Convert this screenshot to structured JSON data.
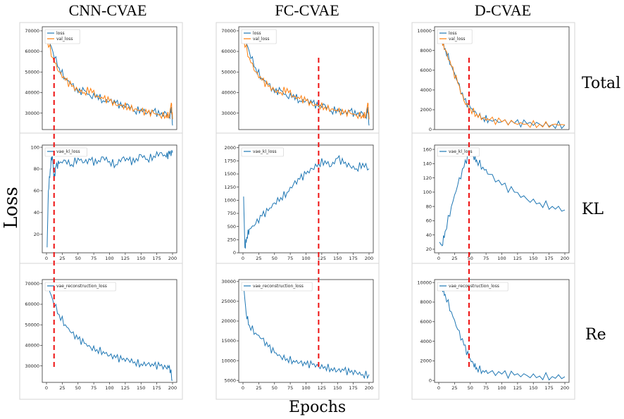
{
  "figure": {
    "column_titles": [
      "CNN-CVAE",
      "FC-CVAE",
      "D-CVAE"
    ],
    "row_labels": [
      "Total",
      "KL",
      "Re"
    ],
    "y_axis_label": "Loss",
    "x_axis_label": "Epochs"
  },
  "chart_data": [
    {
      "type": "line",
      "panel": "CNN-CVAE / Total",
      "x_range": [
        0,
        200
      ],
      "ylim": [
        22000,
        72000
      ],
      "yticks": [
        30000,
        40000,
        50000,
        60000,
        70000
      ],
      "xticks": [],
      "series": [
        {
          "name": "loss",
          "color": "#1f77b4",
          "x": [
            1,
            10,
            20,
            30,
            40,
            50,
            60,
            70,
            80,
            90,
            100,
            110,
            120,
            130,
            140,
            150,
            160,
            170,
            180,
            190,
            195,
            198,
            200
          ],
          "y": [
            68000,
            60000,
            52000,
            47000,
            44000,
            40000,
            41000,
            38000,
            39000,
            36000,
            36000,
            35000,
            33000,
            34000,
            31000,
            32000,
            30000,
            31000,
            29000,
            30000,
            28000,
            33000,
            24000
          ]
        },
        {
          "name": "val_loss",
          "color": "#ff7f0e",
          "x": [
            1,
            10,
            20,
            30,
            40,
            50,
            60,
            70,
            80,
            90,
            100,
            110,
            120,
            130,
            140,
            150,
            160,
            170,
            180,
            190,
            195,
            198,
            200
          ],
          "y": [
            66000,
            57000,
            50000,
            46000,
            43000,
            41000,
            40000,
            42000,
            38000,
            37000,
            36000,
            34000,
            34000,
            33000,
            32000,
            31000,
            30000,
            30000,
            29000,
            29000,
            29000,
            35000,
            27000
          ]
        }
      ],
      "legend_position": "top-left",
      "vline_x": 12
    },
    {
      "type": "line",
      "panel": "FC-CVAE / Total",
      "x_range": [
        0,
        200
      ],
      "ylim": [
        22000,
        72000
      ],
      "yticks": [
        30000,
        40000,
        50000,
        60000,
        70000
      ],
      "xticks": [],
      "series": [
        {
          "name": "loss",
          "color": "#1f77b4",
          "x": [
            1,
            10,
            20,
            30,
            40,
            50,
            60,
            70,
            80,
            90,
            100,
            110,
            120,
            130,
            140,
            150,
            160,
            170,
            180,
            190,
            195,
            198,
            200
          ],
          "y": [
            68000,
            60000,
            52000,
            47000,
            44000,
            40000,
            41000,
            38000,
            39000,
            36000,
            36000,
            35000,
            33000,
            34000,
            31000,
            32000,
            30000,
            31000,
            29000,
            30000,
            28000,
            33000,
            24000
          ]
        },
        {
          "name": "val_loss",
          "color": "#ff7f0e",
          "x": [
            1,
            10,
            20,
            30,
            40,
            50,
            60,
            70,
            80,
            90,
            100,
            110,
            120,
            130,
            140,
            150,
            160,
            170,
            180,
            190,
            195,
            198,
            200
          ],
          "y": [
            66000,
            57000,
            50000,
            46000,
            43000,
            41000,
            40000,
            42000,
            38000,
            37000,
            36000,
            34000,
            34000,
            33000,
            32000,
            31000,
            30000,
            30000,
            29000,
            29000,
            29000,
            35000,
            27000
          ]
        }
      ],
      "legend_position": "top-left",
      "vline_x": 120
    },
    {
      "type": "line",
      "panel": "D-CVAE / Total",
      "x_range": [
        0,
        200
      ],
      "ylim": [
        0,
        10400
      ],
      "yticks": [
        0,
        2000,
        4000,
        6000,
        8000,
        10000
      ],
      "xticks": [],
      "series": [
        {
          "name": "loss",
          "color": "#1f77b4",
          "x": [
            1,
            5,
            10,
            20,
            30,
            40,
            50,
            60,
            70,
            80,
            100,
            120,
            140,
            160,
            180,
            200
          ],
          "y": [
            9800,
            9000,
            8200,
            6500,
            4800,
            3000,
            2200,
            1600,
            1200,
            1000,
            800,
            650,
            600,
            550,
            500,
            480
          ]
        },
        {
          "name": "val_loss",
          "color": "#ff7f0e",
          "x": [
            1,
            5,
            10,
            20,
            30,
            40,
            50,
            60,
            70,
            80,
            100,
            120,
            140,
            160,
            180,
            200
          ],
          "y": [
            9600,
            8900,
            8100,
            6400,
            4700,
            2900,
            2100,
            1550,
            1150,
            950,
            780,
            640,
            580,
            540,
            500,
            470
          ]
        }
      ],
      "legend_position": "top-left",
      "vline_x": 48
    },
    {
      "type": "line",
      "panel": "CNN-CVAE / KL",
      "x_range": [
        0,
        200
      ],
      "ylim": [
        3,
        102
      ],
      "yticks": [
        20,
        40,
        60,
        80,
        100
      ],
      "xticks": [
        0,
        25,
        50,
        75,
        100,
        125,
        150,
        175,
        200
      ],
      "series": [
        {
          "name": "vae_kl_loss",
          "color": "#1f77b4",
          "x": [
            1,
            3,
            6,
            9,
            12,
            15,
            20,
            30,
            40,
            50,
            60,
            70,
            80,
            90,
            100,
            110,
            120,
            130,
            140,
            150,
            160,
            170,
            180,
            190,
            195,
            200
          ],
          "y": [
            8,
            60,
            80,
            95,
            70,
            82,
            85,
            88,
            84,
            90,
            86,
            88,
            85,
            91,
            87,
            84,
            90,
            88,
            86,
            93,
            89,
            92,
            95,
            91,
            94,
            95
          ]
        }
      ],
      "legend_position": "top-left",
      "vline_x": 12
    },
    {
      "type": "line",
      "panel": "FC-CVAE / KL",
      "x_range": [
        0,
        200
      ],
      "ylim": [
        0,
        2050
      ],
      "yticks": [
        0,
        250,
        500,
        750,
        1000,
        1250,
        1500,
        1750,
        2000
      ],
      "xticks": [
        0,
        25,
        50,
        75,
        100,
        125,
        150,
        175,
        200
      ],
      "series": [
        {
          "name": "vae_kl_loss",
          "color": "#1f77b4",
          "x": [
            1,
            3,
            6,
            10,
            20,
            30,
            40,
            50,
            60,
            70,
            80,
            90,
            100,
            110,
            120,
            130,
            140,
            150,
            160,
            170,
            180,
            190,
            200
          ],
          "y": [
            1070,
            100,
            300,
            450,
            550,
            700,
            800,
            950,
            1050,
            1150,
            1300,
            1400,
            1500,
            1600,
            1700,
            1750,
            1650,
            1800,
            1700,
            1650,
            1600,
            1700,
            1600
          ]
        }
      ],
      "legend_position": "top-left",
      "vline_x": 120
    },
    {
      "type": "line",
      "panel": "D-CVAE / KL",
      "x_range": [
        0,
        200
      ],
      "ylim": [
        15,
        166
      ],
      "yticks": [
        20,
        40,
        60,
        80,
        100,
        120,
        140,
        160
      ],
      "xticks": [
        0,
        25,
        50,
        75,
        100,
        125,
        150,
        175,
        200
      ],
      "series": [
        {
          "name": "vae_kl_loss",
          "color": "#1f77b4",
          "x": [
            1,
            5,
            10,
            20,
            30,
            40,
            48,
            55,
            60,
            70,
            80,
            100,
            120,
            140,
            160,
            180,
            200
          ],
          "y": [
            30,
            25,
            45,
            80,
            110,
            135,
            155,
            150,
            145,
            135,
            125,
            110,
            100,
            90,
            85,
            80,
            75
          ]
        }
      ],
      "legend_position": "top-left",
      "vline_x": 48
    },
    {
      "type": "line",
      "panel": "CNN-CVAE / Re",
      "x_range": [
        0,
        200
      ],
      "ylim": [
        22000,
        72000
      ],
      "yticks": [
        30000,
        40000,
        50000,
        60000,
        70000
      ],
      "xticks": [
        0,
        25,
        50,
        75,
        100,
        125,
        150,
        175,
        200
      ],
      "series": [
        {
          "name": "vae_reconstruction_loss",
          "color": "#1f77b4",
          "x": [
            1,
            10,
            20,
            30,
            40,
            50,
            60,
            70,
            80,
            90,
            100,
            110,
            120,
            130,
            140,
            150,
            160,
            170,
            180,
            190,
            195,
            200
          ],
          "y": [
            70000,
            62000,
            55000,
            50000,
            46000,
            43000,
            41000,
            39000,
            38000,
            37000,
            35000,
            34000,
            33000,
            33000,
            32000,
            31000,
            31000,
            30000,
            30000,
            29000,
            30000,
            23000
          ]
        }
      ],
      "legend_position": "top-left",
      "vline_x": 12
    },
    {
      "type": "line",
      "panel": "FC-CVAE / Re",
      "x_range": [
        0,
        200
      ],
      "ylim": [
        4500,
        30500
      ],
      "yticks": [
        5000,
        10000,
        15000,
        20000,
        25000,
        30000
      ],
      "xticks": [
        0,
        25,
        50,
        75,
        100,
        125,
        150,
        175,
        200
      ],
      "series": [
        {
          "name": "vae_reconstruction_loss",
          "color": "#1f77b4",
          "x": [
            1,
            5,
            10,
            20,
            30,
            40,
            50,
            60,
            70,
            80,
            90,
            100,
            110,
            120,
            130,
            140,
            150,
            160,
            170,
            180,
            190,
            200
          ],
          "y": [
            29000,
            22000,
            19000,
            17000,
            15500,
            13500,
            12000,
            11000,
            10500,
            10000,
            9500,
            9000,
            9000,
            8500,
            8500,
            8000,
            7500,
            7500,
            7000,
            7000,
            6500,
            6500
          ]
        }
      ],
      "legend_position": "top-left",
      "vline_x": 120
    },
    {
      "type": "line",
      "panel": "D-CVAE / Re",
      "x_range": [
        0,
        200
      ],
      "ylim": [
        -200,
        10300
      ],
      "yticks": [
        0,
        2000,
        4000,
        6000,
        8000,
        10000
      ],
      "xticks": [
        0,
        25,
        50,
        75,
        100,
        125,
        150,
        175,
        200
      ],
      "series": [
        {
          "name": "vae_reconstruction_loss",
          "color": "#1f77b4",
          "x": [
            1,
            5,
            10,
            20,
            30,
            40,
            48,
            55,
            60,
            70,
            80,
            100,
            120,
            140,
            160,
            180,
            200
          ],
          "y": [
            9800,
            9500,
            8800,
            7000,
            5200,
            3600,
            2300,
            1700,
            1300,
            1000,
            800,
            650,
            550,
            500,
            450,
            400,
            380
          ]
        }
      ],
      "legend_position": "top-left",
      "vline_x": 48
    }
  ]
}
